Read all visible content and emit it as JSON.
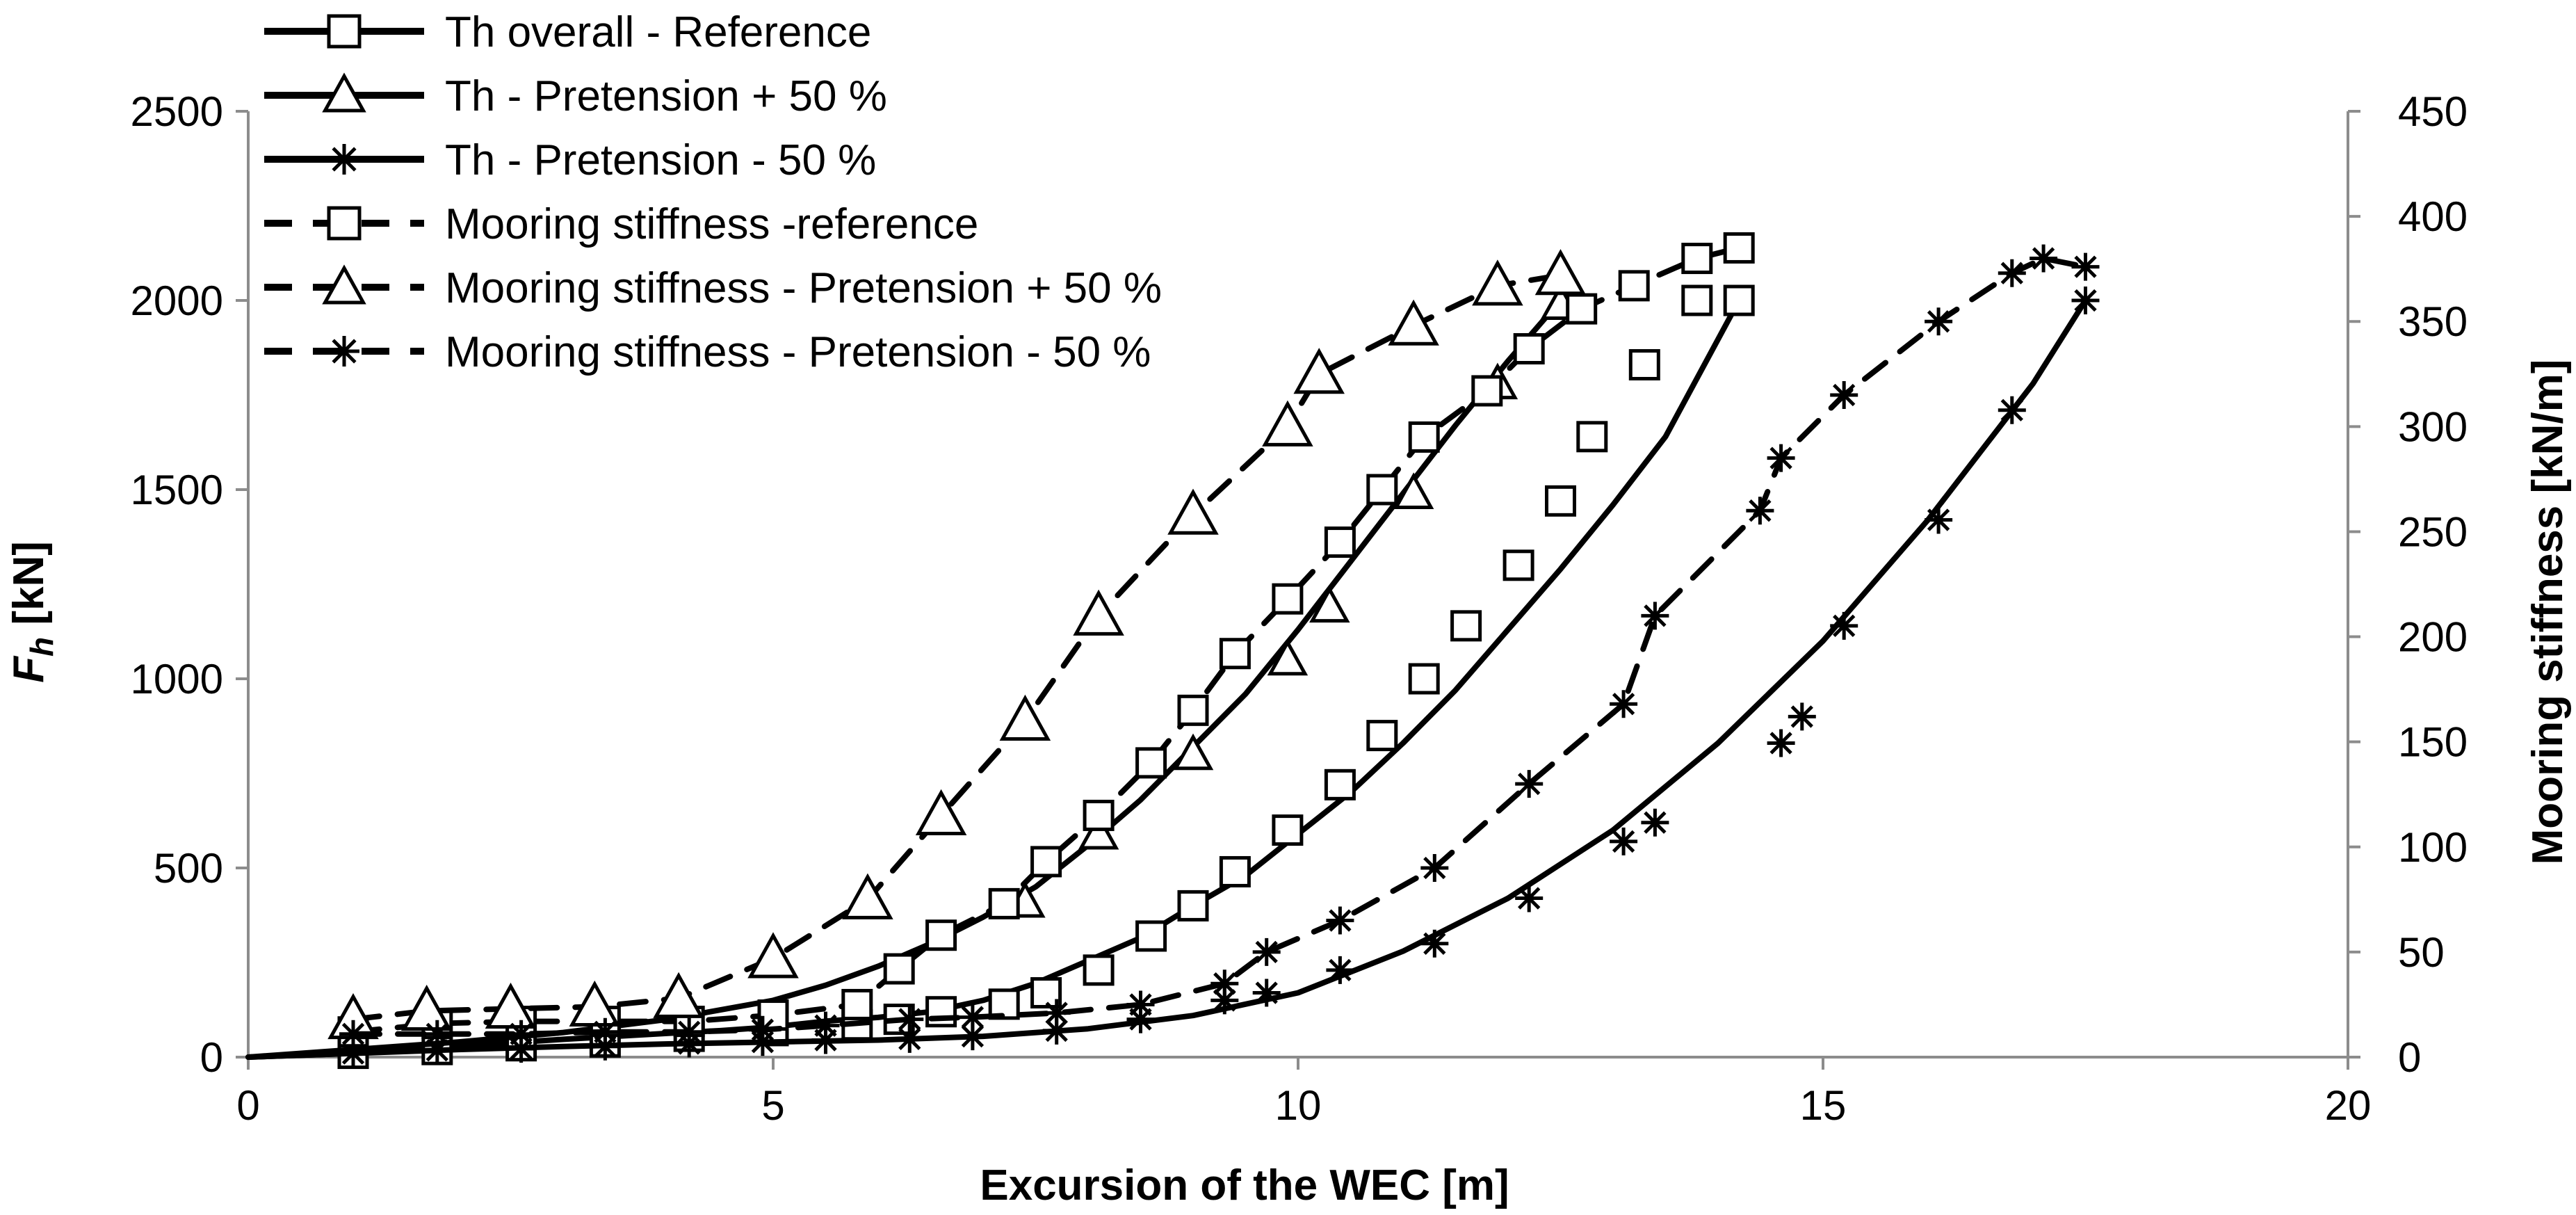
{
  "chart_data": {
    "type": "line",
    "title": "",
    "xlabel": "Excursion of the WEC [m]",
    "ylabel": "F",
    "ylabel_subscript": "h",
    "ylabel_units": " [kN]",
    "y2label": "Mooring stiffness [kN/m]",
    "xlim": [
      0,
      20
    ],
    "ylim": [
      0,
      2500
    ],
    "y2lim": [
      0,
      450
    ],
    "xticks": [
      0,
      5,
      10,
      15,
      20
    ],
    "xtick_labels": [
      "0",
      "5",
      "10",
      "15",
      "20"
    ],
    "yticks": [
      0,
      500,
      1000,
      1500,
      2000,
      2500
    ],
    "ytick_labels": [
      "0",
      "500",
      "1000",
      "1500",
      "2000",
      "2500"
    ],
    "y2ticks": [
      0,
      50,
      100,
      150,
      200,
      250,
      300,
      350,
      400,
      450
    ],
    "y2tick_labels": [
      "0",
      "50",
      "100",
      "150",
      "200",
      "250",
      "300",
      "350",
      "400",
      "450"
    ],
    "grid": false,
    "legend_position": "top-left",
    "series": [
      {
        "name": "Th overall - Reference",
        "axis": "left",
        "style": "solid",
        "marker": "square",
        "x": [
          0,
          1,
          1.5,
          2,
          2.5,
          3,
          3.5,
          4,
          4.5,
          5,
          5.5,
          6,
          6.5,
          7,
          7.5,
          8,
          8.5,
          9,
          9.5,
          10,
          10.5,
          11,
          11.5,
          12,
          12.5,
          13,
          13.5,
          14.2
        ],
        "y": [
          0,
          10,
          20,
          30,
          38,
          47,
          55,
          63,
          70,
          80,
          95,
          105,
          120,
          150,
          195,
          255,
          315,
          400,
          480,
          590,
          700,
          830,
          970,
          1130,
          1290,
          1460,
          1640,
          2000
        ],
        "marker_x": [
          1,
          1.8,
          2.6,
          3.4,
          4.2,
          5,
          5.8,
          6.2,
          6.6,
          7.2,
          7.6,
          8.1,
          8.6,
          9,
          9.4,
          9.9,
          10.4,
          10.8,
          11.2,
          11.6,
          12.1,
          12.5,
          12.8,
          13.3,
          13.8,
          14.2
        ],
        "marker_y": [
          10,
          20,
          30,
          40,
          55,
          70,
          85,
          100,
          120,
          140,
          170,
          230,
          320,
          400,
          490,
          600,
          720,
          850,
          1000,
          1140,
          1300,
          1470,
          1640,
          1830,
          2000,
          2000
        ]
      },
      {
        "name": "Th - Pretension + 50 %",
        "axis": "left",
        "style": "solid",
        "marker": "triangle",
        "x": [
          0,
          1,
          2,
          3,
          4,
          5,
          5.5,
          6,
          6.5,
          7,
          7.5,
          8,
          8.5,
          9,
          9.5,
          10,
          10.5,
          11,
          11.5,
          12,
          12.5
        ],
        "y": [
          0,
          20,
          40,
          65,
          100,
          150,
          190,
          240,
          300,
          370,
          450,
          560,
          680,
          820,
          960,
          1130,
          1310,
          1490,
          1670,
          1840,
          2000
        ],
        "marker_x": [
          7.4,
          8.1,
          9,
          9.9,
          10.3,
          11.1,
          11.9,
          12.5
        ],
        "marker_y": [
          410,
          590,
          800,
          1050,
          1190,
          1490,
          1780,
          1990
        ]
      },
      {
        "name": "Th - Pretension - 50 %",
        "axis": "left",
        "style": "solid",
        "marker": "star",
        "x": [
          0,
          1,
          2,
          3,
          4,
          5,
          6,
          7,
          8,
          9,
          10,
          11,
          12,
          13,
          14,
          15,
          16,
          17,
          17.5
        ],
        "y": [
          0,
          10,
          20,
          28,
          35,
          40,
          45,
          55,
          75,
          110,
          170,
          280,
          420,
          600,
          830,
          1100,
          1420,
          1780,
          2000
        ],
        "marker_x": [
          1,
          1.8,
          2.6,
          3.4,
          4.2,
          4.9,
          5.5,
          6.3,
          6.9,
          7.7,
          8.5,
          9.3,
          9.7,
          10.4,
          11.3,
          12.2,
          13.1,
          13.4,
          14.6,
          14.8,
          15.2,
          16.1,
          16.8,
          17.5
        ],
        "marker_y": [
          10,
          18,
          22,
          28,
          36,
          40,
          45,
          48,
          55,
          70,
          100,
          150,
          170,
          230,
          300,
          420,
          570,
          620,
          830,
          900,
          1140,
          1420,
          1710,
          2000
        ]
      },
      {
        "name": "Mooring stiffness  -reference",
        "axis": "right",
        "style": "dashed",
        "marker": "square",
        "x": [
          1,
          1.8,
          2.6,
          3.4,
          4.2,
          5,
          5.8,
          6.2,
          6.6,
          7.2,
          7.6,
          8.1,
          8.6,
          9,
          9.4,
          9.9,
          10.4,
          10.8,
          11.2,
          11.8,
          12.2,
          12.7,
          13.2,
          13.8,
          14.2
        ],
        "y": [
          12,
          16,
          17,
          17,
          17,
          20,
          25,
          42,
          58,
          73,
          93,
          115,
          140,
          165,
          192,
          218,
          245,
          270,
          295,
          317,
          337,
          356,
          367,
          380,
          385
        ],
        "marker_x": [
          1,
          1.8,
          2.6,
          3.4,
          4.2,
          5,
          5.8,
          6.2,
          6.6,
          7.2,
          7.6,
          8.1,
          8.6,
          9,
          9.4,
          9.9,
          10.4,
          10.8,
          11.2,
          11.8,
          12.2,
          12.7,
          13.2,
          13.8,
          14.2
        ],
        "marker_y": [
          12,
          16,
          17,
          17,
          17,
          20,
          25,
          42,
          58,
          73,
          93,
          115,
          140,
          165,
          192,
          218,
          245,
          270,
          295,
          317,
          337,
          356,
          367,
          380,
          385
        ]
      },
      {
        "name": "Mooring stiffness  - Pretension + 50 %",
        "axis": "right",
        "style": "dashed",
        "marker": "triangle",
        "x": [
          1,
          1.7,
          2.5,
          3.3,
          4.1,
          5,
          5.9,
          6.6,
          7.4,
          8.1,
          9,
          9.9,
          10.2,
          11.1,
          11.9,
          12.5
        ],
        "y": [
          18,
          22,
          23,
          24,
          28,
          47,
          75,
          115,
          160,
          210,
          258,
          300,
          325,
          348,
          367,
          372
        ],
        "marker_x": [
          1,
          1.7,
          2.5,
          3.3,
          4.1,
          5,
          5.9,
          6.6,
          7.4,
          8.1,
          9,
          9.9,
          10.2,
          11.1,
          11.9,
          12.5
        ],
        "marker_y": [
          18,
          22,
          23,
          24,
          28,
          47,
          75,
          115,
          160,
          210,
          258,
          300,
          325,
          348,
          367,
          372
        ]
      },
      {
        "name": "Mooring stiffness  - Pretension - 50 %",
        "axis": "right",
        "style": "dashed",
        "marker": "star",
        "x": [
          1,
          1.8,
          2.6,
          3.4,
          4.2,
          4.9,
          5.5,
          6.3,
          6.9,
          7.7,
          8.5,
          9.3,
          9.7,
          10.4,
          11.3,
          12.2,
          13.1,
          13.4,
          14.4,
          14.6,
          15.2,
          16.1,
          16.8,
          17.1,
          17.5
        ],
        "y": [
          11,
          11,
          11,
          12,
          12,
          13,
          15,
          18,
          19,
          21,
          25,
          35,
          50,
          65,
          90,
          130,
          168,
          210,
          260,
          285,
          315,
          350,
          373,
          380,
          376
        ],
        "marker_x": [
          1,
          1.8,
          2.6,
          3.4,
          4.2,
          4.9,
          5.5,
          6.3,
          6.9,
          7.7,
          8.5,
          9.3,
          9.7,
          10.4,
          11.3,
          12.2,
          13.1,
          13.4,
          14.4,
          14.6,
          15.2,
          16.1,
          16.8,
          17.1,
          17.5
        ],
        "marker_y": [
          11,
          11,
          11,
          12,
          12,
          13,
          15,
          18,
          19,
          21,
          25,
          35,
          50,
          65,
          90,
          130,
          168,
          210,
          260,
          285,
          315,
          350,
          373,
          380,
          376
        ]
      }
    ]
  }
}
